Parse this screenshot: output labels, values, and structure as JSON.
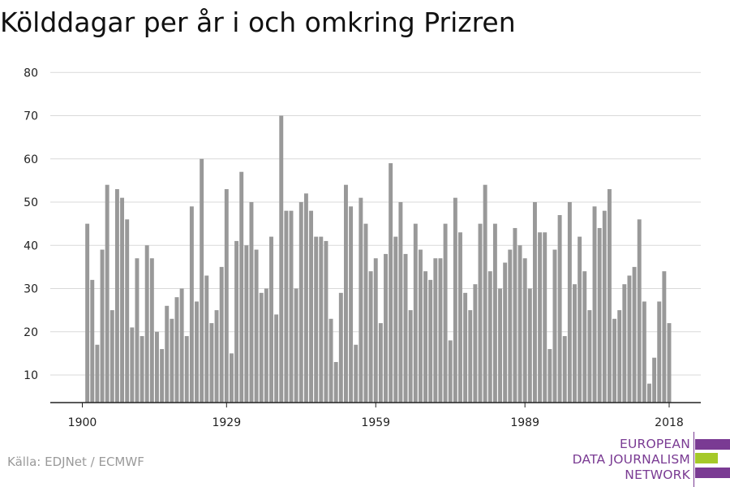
{
  "title": "Kölddagar per år i och omkring Prizren",
  "source": "Källa: EDJNet / ECMWF",
  "logo": {
    "lines": [
      "EUROPEAN",
      "DATA JOURNALISM",
      "NETWORK"
    ],
    "colors": {
      "purple": "#7a3b93",
      "green": "#a5c929"
    }
  },
  "colors": {
    "bar": "#999999",
    "grid": "#d9d9d9",
    "axis": "#222222"
  },
  "chart_data": {
    "type": "bar",
    "title": "Kölddagar per år i och omkring Prizren",
    "xlabel": "",
    "ylabel": "",
    "x_ticks": [
      1900,
      1929,
      1959,
      1989,
      2018
    ],
    "y_ticks": [
      10,
      20,
      30,
      40,
      50,
      60,
      70,
      80
    ],
    "ylim": [
      3.5,
      80
    ],
    "grid": true,
    "years": [
      1901,
      1902,
      1903,
      1904,
      1905,
      1906,
      1907,
      1908,
      1909,
      1910,
      1911,
      1912,
      1913,
      1914,
      1915,
      1916,
      1917,
      1918,
      1919,
      1920,
      1921,
      1922,
      1923,
      1924,
      1925,
      1926,
      1927,
      1928,
      1929,
      1930,
      1931,
      1932,
      1933,
      1934,
      1935,
      1936,
      1937,
      1938,
      1939,
      1940,
      1941,
      1942,
      1943,
      1944,
      1945,
      1946,
      1947,
      1948,
      1949,
      1950,
      1951,
      1952,
      1953,
      1954,
      1955,
      1956,
      1957,
      1958,
      1959,
      1960,
      1961,
      1962,
      1963,
      1964,
      1965,
      1966,
      1967,
      1968,
      1969,
      1970,
      1971,
      1972,
      1973,
      1974,
      1975,
      1976,
      1977,
      1978,
      1979,
      1980,
      1981,
      1982,
      1983,
      1984,
      1985,
      1986,
      1987,
      1988,
      1989,
      1990,
      1991,
      1992,
      1993,
      1994,
      1995,
      1996,
      1997,
      1998,
      1999,
      2000,
      2001,
      2002,
      2003,
      2004,
      2005,
      2006,
      2007,
      2008,
      2009,
      2010,
      2011,
      2012,
      2013,
      2014,
      2015,
      2016,
      2017,
      2018
    ],
    "values": [
      45,
      32,
      17,
      39,
      54,
      25,
      53,
      51,
      46,
      21,
      37,
      19,
      40,
      37,
      20,
      16,
      26,
      23,
      28,
      30,
      19,
      49,
      27,
      60,
      33,
      22,
      25,
      35,
      53,
      15,
      41,
      57,
      40,
      50,
      39,
      29,
      30,
      42,
      24,
      70,
      48,
      48,
      30,
      50,
      52,
      48,
      42,
      42,
      41,
      23,
      13,
      29,
      54,
      49,
      17,
      51,
      45,
      34,
      37,
      22,
      38,
      59,
      42,
      50,
      38,
      25,
      45,
      39,
      34,
      32,
      37,
      37,
      45,
      18,
      51,
      43,
      29,
      25,
      31,
      45,
      54,
      34,
      45,
      30,
      36,
      39,
      44,
      40,
      37,
      30,
      50,
      43,
      43,
      16,
      39,
      47,
      19,
      50,
      31,
      42,
      34,
      25,
      49,
      44,
      48,
      53,
      23,
      25,
      31,
      33,
      35,
      46,
      27,
      8,
      14,
      27,
      34,
      22
    ]
  }
}
